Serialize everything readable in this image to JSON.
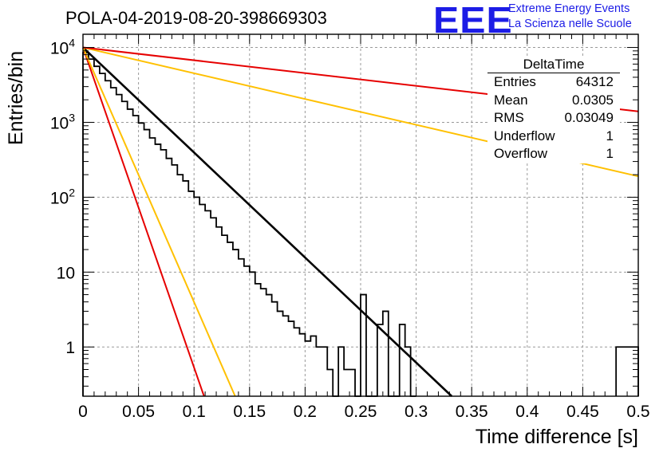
{
  "title": "POLA-04-2019-08-20-398669303",
  "logo": {
    "mark": "EEE",
    "line1": "Extreme Energy Events",
    "line2": "La Scienza nelle Scuole",
    "color": "#1c1ce6"
  },
  "stats": {
    "name": "DeltaTime",
    "rows": [
      {
        "label": "Entries",
        "value": "64312"
      },
      {
        "label": "Mean",
        "value": "0.0305"
      },
      {
        "label": "RMS",
        "value": "0.03049"
      },
      {
        "label": "Underflow",
        "value": "1"
      },
      {
        "label": "Overflow",
        "value": "1"
      }
    ]
  },
  "chart_data": {
    "type": "line",
    "title": "POLA-04-2019-08-20-398669303",
    "xlabel": "Time difference [s]",
    "ylabel": "Entries/bin",
    "xlim": [
      0,
      0.5
    ],
    "ylim": [
      0.22,
      15000
    ],
    "yscale": "log",
    "grid": true,
    "x_ticks": [
      "0",
      "0.05",
      "0.1",
      "0.15",
      "0.2",
      "0.25",
      "0.3",
      "0.35",
      "0.4",
      "0.45",
      "0.5"
    ],
    "y_ticks": [
      {
        "value": 1,
        "label": "1"
      },
      {
        "value": 10,
        "label": "10"
      },
      {
        "value": 100,
        "label": "10",
        "exp": "2"
      },
      {
        "value": 1000,
        "label": "10",
        "exp": "3"
      },
      {
        "value": 10000,
        "label": "10",
        "exp": "4"
      }
    ],
    "histogram": {
      "bin_width": 0.005,
      "color": "#000000",
      "bins": [
        [
          0.0,
          8500
        ],
        [
          0.005,
          7000
        ],
        [
          0.01,
          5600
        ],
        [
          0.015,
          4500
        ],
        [
          0.02,
          3600
        ],
        [
          0.025,
          2900
        ],
        [
          0.03,
          2350
        ],
        [
          0.035,
          1900
        ],
        [
          0.04,
          1500
        ],
        [
          0.045,
          1230
        ],
        [
          0.05,
          980
        ],
        [
          0.055,
          800
        ],
        [
          0.06,
          620
        ],
        [
          0.065,
          510
        ],
        [
          0.07,
          430
        ],
        [
          0.075,
          330
        ],
        [
          0.08,
          270
        ],
        [
          0.085,
          200
        ],
        [
          0.09,
          165
        ],
        [
          0.095,
          120
        ],
        [
          0.1,
          100
        ],
        [
          0.105,
          80
        ],
        [
          0.11,
          66
        ],
        [
          0.115,
          53
        ],
        [
          0.12,
          40
        ],
        [
          0.125,
          31
        ],
        [
          0.13,
          25
        ],
        [
          0.135,
          20
        ],
        [
          0.14,
          15
        ],
        [
          0.145,
          12
        ],
        [
          0.15,
          10
        ],
        [
          0.155,
          7
        ],
        [
          0.16,
          6
        ],
        [
          0.165,
          5
        ],
        [
          0.17,
          4
        ],
        [
          0.175,
          3
        ],
        [
          0.18,
          2.6
        ],
        [
          0.185,
          2.2
        ],
        [
          0.19,
          1.8
        ],
        [
          0.195,
          1.5
        ],
        [
          0.2,
          1.2
        ],
        [
          0.205,
          1.4
        ],
        [
          0.21,
          1
        ],
        [
          0.215,
          1
        ],
        [
          0.22,
          0.5
        ],
        [
          0.225,
          0
        ],
        [
          0.23,
          1
        ],
        [
          0.235,
          0.5
        ],
        [
          0.24,
          0.5
        ],
        [
          0.245,
          0
        ],
        [
          0.25,
          5
        ],
        [
          0.255,
          0
        ],
        [
          0.26,
          0
        ],
        [
          0.265,
          2
        ],
        [
          0.27,
          3
        ],
        [
          0.275,
          0
        ],
        [
          0.28,
          0
        ],
        [
          0.285,
          2
        ],
        [
          0.29,
          1
        ],
        [
          0.295,
          0
        ],
        [
          0.48,
          1
        ],
        [
          0.485,
          1
        ],
        [
          0.49,
          1
        ],
        [
          0.495,
          1
        ]
      ]
    },
    "series": [
      {
        "color": "#000000",
        "x": [
          0,
          0.332
        ],
        "y": [
          10000,
          0.22
        ]
      },
      {
        "color": "#e60000",
        "x": [
          0,
          0.109
        ],
        "y": [
          10000,
          0.22
        ]
      },
      {
        "color": "#ffc000",
        "x": [
          0,
          0.137
        ],
        "y": [
          10000,
          0.22
        ]
      },
      {
        "color": "#ffc000",
        "x": [
          0,
          0.5
        ],
        "y": [
          10000,
          190
        ]
      },
      {
        "color": "#e60000",
        "x": [
          0,
          0.5
        ],
        "y": [
          10000,
          1400
        ]
      }
    ]
  }
}
